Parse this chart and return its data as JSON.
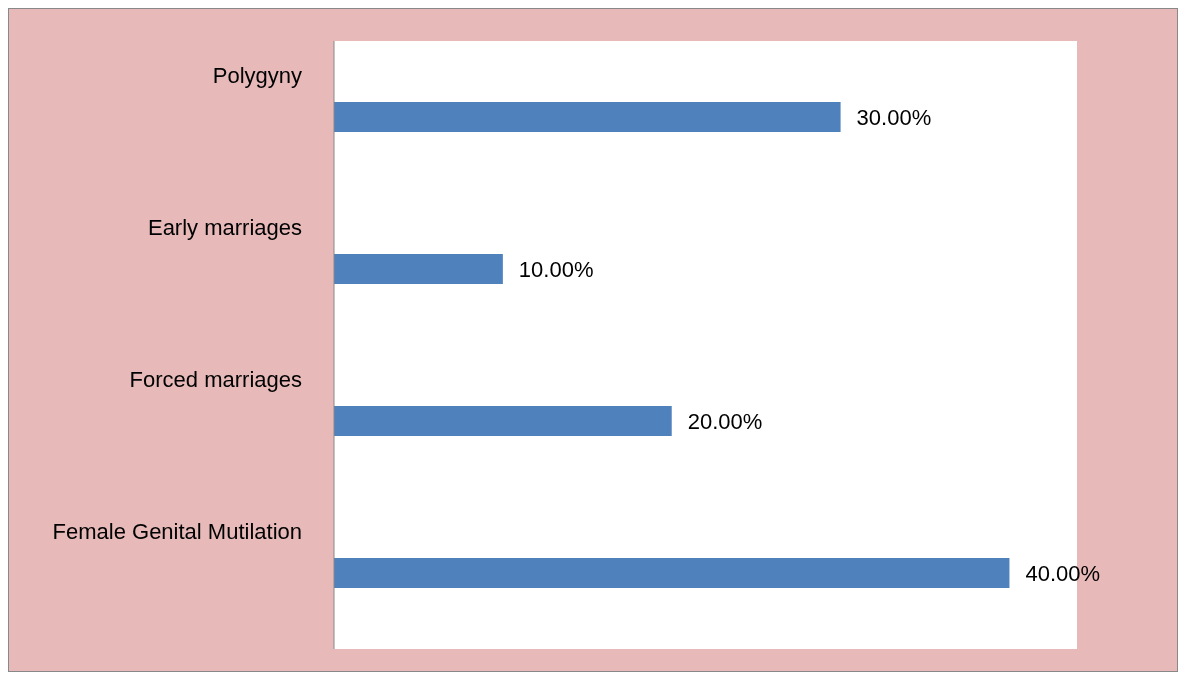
{
  "chart_data": {
    "type": "bar",
    "orientation": "horizontal",
    "categories": [
      "Polygyny",
      "Early marriages",
      "Forced marriages",
      "Female Genital Mutilation"
    ],
    "values": [
      30,
      10,
      20,
      40
    ],
    "value_labels": [
      "30.00%",
      "10.00%",
      "20.00%",
      "40.00%"
    ],
    "color": "#4f81bd"
  }
}
